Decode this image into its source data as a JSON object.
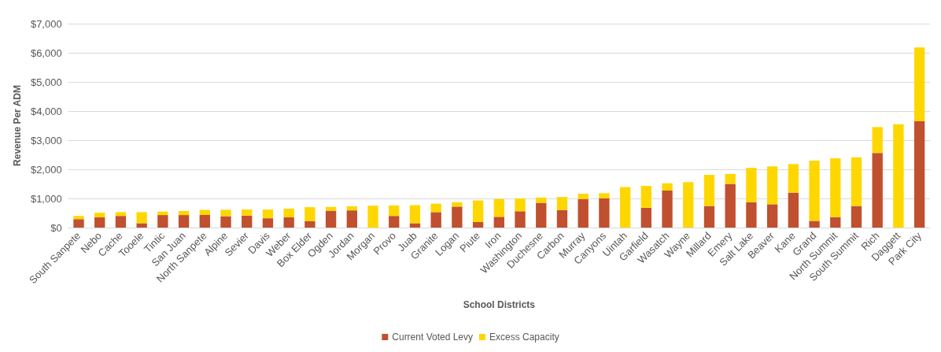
{
  "chart_data": {
    "type": "bar",
    "stacked": true,
    "xlabel": "School Districts",
    "ylabel": "Revenue Per ADM",
    "categories": [
      "South Sanpete",
      "Nebo",
      "Cache",
      "Tooele",
      "Tintic",
      "San Juan",
      "North Sanpete",
      "Alpine",
      "Sevier",
      "Davis",
      "Weber",
      "Box Elder",
      "Ogden",
      "Jordan",
      "Morgan",
      "Provo",
      "Juab",
      "Granite",
      "Logan",
      "Piute",
      "Iron",
      "Washington",
      "Duchesne",
      "Carbon",
      "Murray",
      "Canyons",
      "Uintah",
      "Garfield",
      "Wasatch",
      "Wayne",
      "Millard",
      "Emery",
      "Salt Lake",
      "Beaver",
      "Kane",
      "Grand",
      "North Summit",
      "South Summit",
      "Rich",
      "Daggett",
      "Park City"
    ],
    "series": [
      {
        "name": "Current Voted Levy",
        "color": "#c0502f",
        "values": [
          290,
          350,
          400,
          150,
          430,
          430,
          430,
          390,
          410,
          320,
          350,
          220,
          580,
          590,
          0,
          400,
          150,
          530,
          720,
          190,
          370,
          560,
          850,
          600,
          980,
          1000,
          0,
          680,
          1270,
          0,
          740,
          1500,
          870,
          800,
          1200,
          230,
          360,
          740,
          2560,
          0,
          3650
        ]
      },
      {
        "name": "Excess Capacity",
        "color": "#ffd700",
        "values": [
          110,
          160,
          130,
          380,
          120,
          140,
          180,
          220,
          210,
          300,
          300,
          480,
          130,
          140,
          750,
          360,
          620,
          290,
          150,
          740,
          610,
          440,
          180,
          450,
          180,
          180,
          1390,
          750,
          250,
          1560,
          1070,
          340,
          1180,
          1300,
          980,
          2070,
          2020,
          1670,
          890,
          3550,
          2530
        ]
      }
    ],
    "ylim": [
      0,
      7000
    ],
    "yticks": [
      {
        "value": 0,
        "label": "$0"
      },
      {
        "value": 1000,
        "label": "$1,000"
      },
      {
        "value": 2000,
        "label": "$2,000"
      },
      {
        "value": 3000,
        "label": "$3,000"
      },
      {
        "value": 4000,
        "label": "$4,000"
      },
      {
        "value": 5000,
        "label": "$5,000"
      },
      {
        "value": 6000,
        "label": "$6,000"
      },
      {
        "value": 7000,
        "label": "$7,000"
      }
    ],
    "grid": "y",
    "legend": "bottom"
  }
}
